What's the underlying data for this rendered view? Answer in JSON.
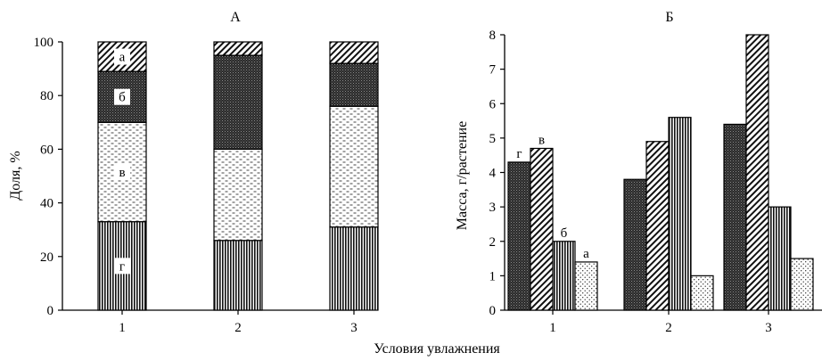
{
  "figure": {
    "xlabel": "Условия увлажнения"
  },
  "chart_data": [
    {
      "type": "bar",
      "stacked": true,
      "title": "А",
      "ylabel": "Доля, %",
      "ylim": [
        0,
        100
      ],
      "yticks": [
        0,
        20,
        40,
        60,
        80,
        100
      ],
      "categories": [
        "1",
        "2",
        "3"
      ],
      "series": [
        {
          "name": "г",
          "values": [
            33,
            26,
            31
          ],
          "pattern": "vertical-lines"
        },
        {
          "name": "в",
          "values": [
            37,
            34,
            45
          ],
          "pattern": "dashes"
        },
        {
          "name": "б",
          "values": [
            19,
            35,
            16
          ],
          "pattern": "dark-stipple"
        },
        {
          "name": "а",
          "values": [
            11,
            5,
            8
          ],
          "pattern": "diagonal-lines"
        }
      ]
    },
    {
      "type": "bar",
      "title": "Б",
      "ylabel": "Масса, г/растение",
      "ylim": [
        0,
        8
      ],
      "yticks": [
        0,
        1,
        2,
        3,
        4,
        5,
        6,
        7,
        8
      ],
      "categories": [
        "1",
        "2",
        "3"
      ],
      "series": [
        {
          "name": "г",
          "values": [
            4.3,
            3.8,
            5.4
          ],
          "pattern": "dark-stipple"
        },
        {
          "name": "в",
          "values": [
            4.7,
            4.9,
            8.0
          ],
          "pattern": "diagonal-lines"
        },
        {
          "name": "б",
          "values": [
            2.0,
            5.6,
            3.0
          ],
          "pattern": "vertical-lines"
        },
        {
          "name": "а",
          "values": [
            1.4,
            1.0,
            1.5
          ],
          "pattern": "dots"
        }
      ]
    }
  ]
}
